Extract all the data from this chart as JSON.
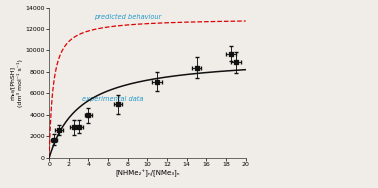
{
  "title": "",
  "xlabel": "[NHMe₂⁺]ₙ/[NMe₃]ₙ",
  "ylabel": "ṁₑₗₗ/[PhSH] (dm³ mol⁻¹ s⁻¹)",
  "ylabel_line1": "ṁₑₗₗ/[PhSH]",
  "ylabel_line2": "(dm³ mol⁻¹ s⁻¹)",
  "xlim": [
    0.0,
    20.0
  ],
  "ylim": [
    0,
    14000
  ],
  "xticks": [
    0.0,
    2.0,
    4.0,
    6.0,
    8.0,
    10.0,
    12.0,
    14.0,
    16.0,
    18.0,
    20.0
  ],
  "yticks": [
    0,
    2000,
    4000,
    6000,
    8000,
    10000,
    12000,
    14000
  ],
  "exp_x": [
    0.5,
    1.0,
    2.5,
    3.0,
    4.0,
    7.0,
    11.0,
    15.0,
    18.5,
    19.0
  ],
  "exp_y": [
    1700,
    2600,
    2850,
    2900,
    3950,
    5000,
    7100,
    8400,
    9700,
    8900
  ],
  "exp_yerr": [
    500,
    500,
    700,
    600,
    700,
    900,
    900,
    1000,
    700,
    1000
  ],
  "exp_xerr": [
    0.3,
    0.4,
    0.4,
    0.4,
    0.4,
    0.4,
    0.5,
    0.5,
    0.5,
    0.5
  ],
  "fit_kmax": 9500,
  "fit_K": 0.32,
  "pred_kmax": 13000,
  "pred_K": 2.5,
  "label_predicted": "predicted behaviour",
  "label_experimental": "experimental data",
  "fit_color": "#111111",
  "pred_color": "#dd0000",
  "data_color": "#111111",
  "label_color_pred": "#2299cc",
  "label_color_exp": "#2299cc",
  "bg_color": "#f0ede8"
}
